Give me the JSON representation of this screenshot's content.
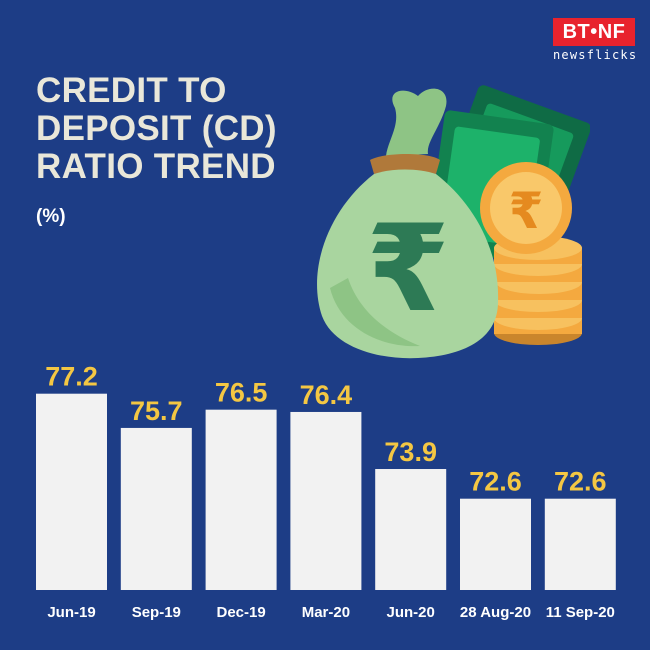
{
  "logo": {
    "top": "BT•NF",
    "bottom": "newsflicks"
  },
  "title_lines": [
    "CREDIT TO",
    "DEPOSIT (CD)",
    "RATIO TREND"
  ],
  "unit": "(%)",
  "illustration": {
    "icon": "money-bag-rupee-icon",
    "currency_symbol": "₹"
  },
  "colors": {
    "background": "#1d3d86",
    "bar": "#f2f2f2",
    "value_label": "#f4c743",
    "title": "#e9e7d9",
    "logo_red": "#e8232d"
  },
  "chart_data": {
    "type": "bar",
    "categories": [
      "Jun-19",
      "Sep-19",
      "Dec-19",
      "Mar-20",
      "Jun-20",
      "28 Aug-20",
      "11 Sep-20"
    ],
    "values": [
      77.2,
      75.7,
      76.5,
      76.4,
      73.9,
      72.6,
      72.6
    ],
    "value_labels": [
      "77.2",
      "75.7",
      "76.5",
      "76.4",
      "73.9",
      "72.6",
      "72.6"
    ],
    "title": "CREDIT TO DEPOSIT (CD) RATIO TREND",
    "ylabel": "(%)",
    "ylim": [
      68.6,
      77.8
    ],
    "grid": false,
    "legend": "none"
  }
}
